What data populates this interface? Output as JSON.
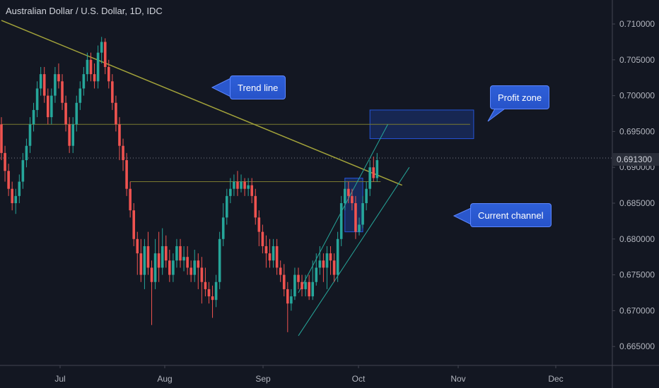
{
  "header": {
    "title": "Australian Dollar / U.S. Dollar, 1D, IDC"
  },
  "annotations": {
    "trend_line": "Trend line",
    "profit_zone": "Profit zone",
    "current_channel": "Current channel"
  },
  "colors": {
    "background": "#131722",
    "up": "#26a69a",
    "down": "#ef5350",
    "trend": "#a3a33a",
    "channel": "#26a69a",
    "zone": "#2962ff",
    "grid": "#2a2e39"
  },
  "chart_data": {
    "type": "candlestick",
    "title": "Australian Dollar / U.S. Dollar, 1D, IDC",
    "xlabel": "",
    "ylabel": "",
    "ylim": [
      0.6625,
      0.7125
    ],
    "y_ticks": [
      "0.710000",
      "0.705000",
      "0.700000",
      "0.695000",
      "0.690000",
      "0.685000",
      "0.680000",
      "0.675000",
      "0.670000",
      "0.665000"
    ],
    "x_ticks": [
      "Jul",
      "Aug",
      "Sep",
      "Oct",
      "Nov",
      "Dec"
    ],
    "current_price": "0.691300",
    "candles": [
      [
        0.696,
        0.692,
        0.697,
        0.691
      ],
      [
        0.692,
        0.6895,
        0.693,
        0.688
      ],
      [
        0.6895,
        0.687,
        0.6905,
        0.686
      ],
      [
        0.687,
        0.685,
        0.688,
        0.684
      ],
      [
        0.685,
        0.686,
        0.687,
        0.6835
      ],
      [
        0.686,
        0.688,
        0.689,
        0.685
      ],
      [
        0.688,
        0.691,
        0.692,
        0.687
      ],
      [
        0.691,
        0.693,
        0.694,
        0.69
      ],
      [
        0.693,
        0.696,
        0.697,
        0.692
      ],
      [
        0.696,
        0.698,
        0.699,
        0.695
      ],
      [
        0.698,
        0.701,
        0.702,
        0.697
      ],
      [
        0.701,
        0.703,
        0.704,
        0.7
      ],
      [
        0.703,
        0.7,
        0.704,
        0.699
      ],
      [
        0.7,
        0.697,
        0.701,
        0.696
      ],
      [
        0.697,
        0.7,
        0.701,
        0.696
      ],
      [
        0.7,
        0.703,
        0.704,
        0.699
      ],
      [
        0.703,
        0.702,
        0.7045,
        0.701
      ],
      [
        0.702,
        0.699,
        0.703,
        0.698
      ],
      [
        0.699,
        0.696,
        0.7,
        0.695
      ],
      [
        0.696,
        0.693,
        0.697,
        0.692
      ],
      [
        0.693,
        0.696,
        0.697,
        0.692
      ],
      [
        0.696,
        0.699,
        0.7,
        0.695
      ],
      [
        0.699,
        0.701,
        0.702,
        0.698
      ],
      [
        0.701,
        0.703,
        0.704,
        0.7
      ],
      [
        0.703,
        0.705,
        0.706,
        0.702
      ],
      [
        0.705,
        0.703,
        0.706,
        0.702
      ],
      [
        0.703,
        0.702,
        0.7045,
        0.701
      ],
      [
        0.702,
        0.706,
        0.707,
        0.701
      ],
      [
        0.706,
        0.7075,
        0.7082,
        0.7045
      ],
      [
        0.7075,
        0.704,
        0.708,
        0.703
      ],
      [
        0.704,
        0.702,
        0.705,
        0.701
      ],
      [
        0.702,
        0.699,
        0.703,
        0.698
      ],
      [
        0.699,
        0.696,
        0.7,
        0.695
      ],
      [
        0.696,
        0.693,
        0.697,
        0.691
      ],
      [
        0.693,
        0.691,
        0.694,
        0.6895
      ],
      [
        0.691,
        0.687,
        0.692,
        0.686
      ],
      [
        0.687,
        0.684,
        0.688,
        0.683
      ],
      [
        0.684,
        0.68,
        0.685,
        0.679
      ],
      [
        0.68,
        0.678,
        0.681,
        0.675
      ],
      [
        0.678,
        0.675,
        0.68,
        0.674
      ],
      [
        0.675,
        0.679,
        0.68,
        0.673
      ],
      [
        0.679,
        0.676,
        0.681,
        0.675
      ],
      [
        0.676,
        0.674,
        0.677,
        0.668
      ],
      [
        0.674,
        0.678,
        0.68,
        0.673
      ],
      [
        0.678,
        0.676,
        0.681,
        0.674
      ],
      [
        0.676,
        0.679,
        0.6815,
        0.675
      ],
      [
        0.679,
        0.677,
        0.6805,
        0.676
      ],
      [
        0.677,
        0.675,
        0.6785,
        0.674
      ],
      [
        0.675,
        0.677,
        0.678,
        0.674
      ],
      [
        0.677,
        0.679,
        0.68,
        0.676
      ],
      [
        0.679,
        0.677,
        0.68,
        0.676
      ],
      [
        0.677,
        0.6775,
        0.679,
        0.6755
      ],
      [
        0.6775,
        0.676,
        0.679,
        0.675
      ],
      [
        0.676,
        0.675,
        0.677,
        0.674
      ],
      [
        0.675,
        0.677,
        0.6785,
        0.674
      ],
      [
        0.677,
        0.676,
        0.678,
        0.673
      ],
      [
        0.676,
        0.674,
        0.6775,
        0.671
      ],
      [
        0.674,
        0.673,
        0.676,
        0.672
      ],
      [
        0.673,
        0.672,
        0.674,
        0.671
      ],
      [
        0.672,
        0.6715,
        0.6735,
        0.669
      ],
      [
        0.6715,
        0.674,
        0.675,
        0.6705
      ],
      [
        0.674,
        0.68,
        0.681,
        0.673
      ],
      [
        0.68,
        0.683,
        0.685,
        0.679
      ],
      [
        0.683,
        0.686,
        0.687,
        0.682
      ],
      [
        0.686,
        0.687,
        0.6885,
        0.685
      ],
      [
        0.687,
        0.688,
        0.689,
        0.686
      ],
      [
        0.688,
        0.687,
        0.6895,
        0.686
      ],
      [
        0.687,
        0.688,
        0.689,
        0.6865
      ],
      [
        0.688,
        0.687,
        0.6885,
        0.686
      ],
      [
        0.687,
        0.6875,
        0.6885,
        0.686
      ],
      [
        0.6875,
        0.686,
        0.6885,
        0.685
      ],
      [
        0.686,
        0.683,
        0.687,
        0.682
      ],
      [
        0.683,
        0.681,
        0.684,
        0.679
      ],
      [
        0.681,
        0.679,
        0.682,
        0.678
      ],
      [
        0.679,
        0.678,
        0.6805,
        0.676
      ],
      [
        0.678,
        0.677,
        0.68,
        0.676
      ],
      [
        0.677,
        0.679,
        0.68,
        0.676
      ],
      [
        0.679,
        0.676,
        0.68,
        0.675
      ],
      [
        0.676,
        0.675,
        0.677,
        0.674
      ],
      [
        0.675,
        0.673,
        0.6765,
        0.672
      ],
      [
        0.673,
        0.671,
        0.674,
        0.667
      ],
      [
        0.671,
        0.672,
        0.673,
        0.67
      ],
      [
        0.672,
        0.675,
        0.676,
        0.6715
      ],
      [
        0.675,
        0.674,
        0.676,
        0.673
      ],
      [
        0.674,
        0.673,
        0.675,
        0.672
      ],
      [
        0.673,
        0.674,
        0.675,
        0.672
      ],
      [
        0.674,
        0.672,
        0.675,
        0.6715
      ],
      [
        0.672,
        0.674,
        0.677,
        0.6715
      ],
      [
        0.674,
        0.676,
        0.678,
        0.6735
      ],
      [
        0.676,
        0.677,
        0.679,
        0.675
      ],
      [
        0.677,
        0.676,
        0.678,
        0.674
      ],
      [
        0.676,
        0.678,
        0.679,
        0.673
      ],
      [
        0.678,
        0.677,
        0.679,
        0.675
      ],
      [
        0.677,
        0.675,
        0.678,
        0.674
      ],
      [
        0.675,
        0.68,
        0.681,
        0.674
      ],
      [
        0.68,
        0.685,
        0.686,
        0.679
      ],
      [
        0.685,
        0.687,
        0.688,
        0.684
      ],
      [
        0.687,
        0.686,
        0.688,
        0.685
      ],
      [
        0.686,
        0.685,
        0.687,
        0.684
      ],
      [
        0.685,
        0.681,
        0.686,
        0.68
      ],
      [
        0.681,
        0.682,
        0.683,
        0.6805
      ],
      [
        0.682,
        0.685,
        0.686,
        0.6815
      ],
      [
        0.685,
        0.687,
        0.688,
        0.684
      ],
      [
        0.687,
        0.69,
        0.691,
        0.686
      ],
      [
        0.69,
        0.6885,
        0.6915,
        0.688
      ],
      [
        0.6885,
        0.691,
        0.692,
        0.688
      ]
    ],
    "drawings": {
      "trend_line": {
        "from": {
          "bar": 0,
          "price": 0.7105
        },
        "to": {
          "bar": 112,
          "price": 0.6875
        }
      },
      "resistance_line": {
        "from": {
          "bar": 0,
          "price": 0.696
        },
        "to": {
          "bar": 131,
          "price": 0.696
        }
      },
      "support_line": {
        "from": {
          "bar": 36,
          "price": 0.688
        },
        "to": {
          "bar": 106,
          "price": 0.688
        }
      },
      "channel_lower": {
        "from": {
          "bar": 83,
          "price": 0.6665
        },
        "to": {
          "bar": 114,
          "price": 0.69
        }
      },
      "channel_upper": {
        "from": {
          "bar": 83,
          "price": 0.6725
        },
        "to": {
          "bar": 108,
          "price": 0.696
        }
      },
      "profit_zone": {
        "bar_from": 103,
        "bar_to": 132,
        "price_top": 0.698,
        "price_bottom": 0.694
      },
      "highlight_box": {
        "bar_from": 96,
        "bar_to": 101,
        "price_top": 0.6885,
        "price_bottom": 0.681
      }
    }
  }
}
